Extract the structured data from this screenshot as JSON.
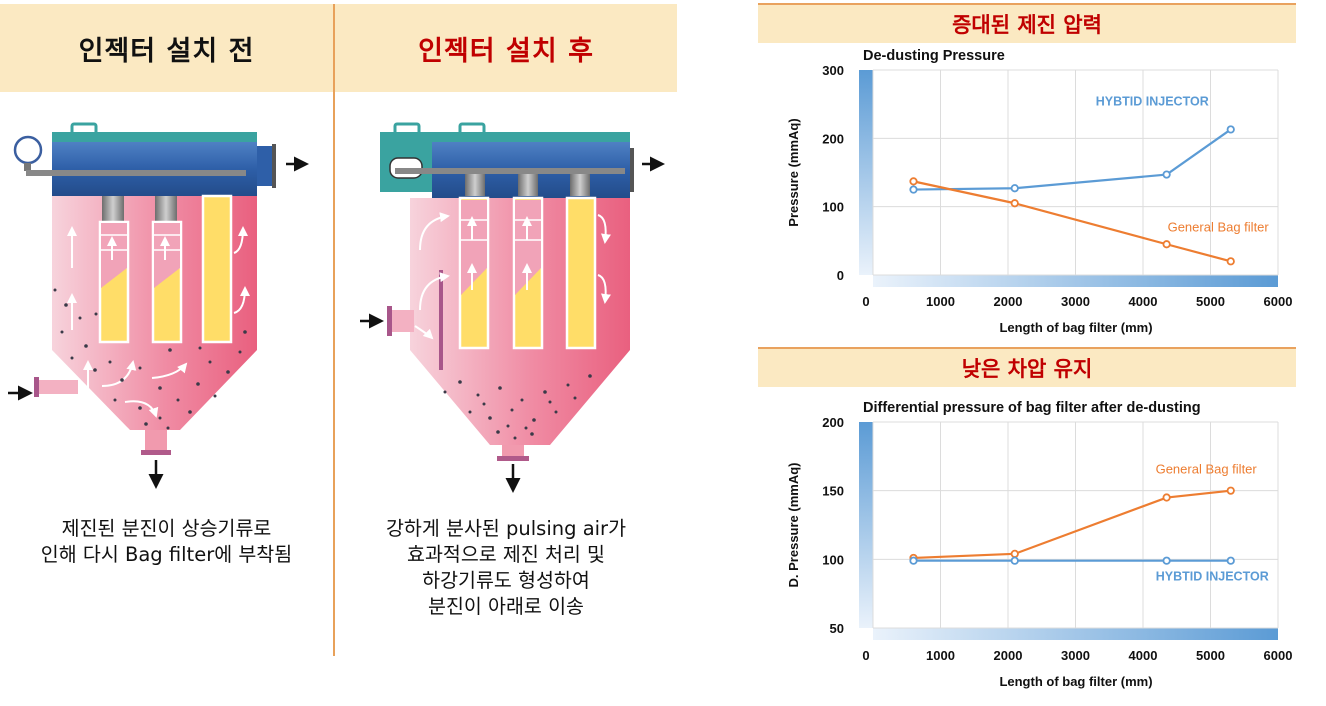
{
  "before": {
    "title": "인젝터 설치 전",
    "caption": [
      "제진된 분진이 상승기류로",
      "인해 다시 Bag filter에 부착됨"
    ]
  },
  "after": {
    "title": "인젝터 설치 후",
    "caption": [
      "강하게 분사된 pulsing air가",
      "효과적으로 제진 처리 및",
      "하강기류도 형성하여",
      "분진이 아래로 이송"
    ]
  },
  "colors": {
    "accent_red": "#c00000",
    "header_bg": "#fbe9c2",
    "series_injector": "#5b9bd5",
    "series_general": "#ed7d31"
  },
  "chart_data": [
    {
      "header": "증대된 제진 압력",
      "type": "line",
      "title": "De-dusting Pressure",
      "xlabel": "Length of bag filter (mm)",
      "ylabel": "Pressure (mmAq)",
      "xlim": [
        0,
        6000
      ],
      "ylim": [
        0,
        300
      ],
      "xticks": [
        "0",
        "1000",
        "2000",
        "3000",
        "4000",
        "5000",
        "6000"
      ],
      "yticks": [
        "0",
        "100",
        "200",
        "300"
      ],
      "series": [
        {
          "name": "HYBTID INJECTOR",
          "x": [
            600,
            2100,
            4350,
            5300
          ],
          "y": [
            125,
            127,
            147,
            213
          ]
        },
        {
          "name": "General Bag filter",
          "x": [
            600,
            2100,
            4350,
            5300
          ],
          "y": [
            137,
            105,
            45,
            20
          ]
        }
      ]
    },
    {
      "header": "낮은 차압 유지",
      "type": "line",
      "title": "Differential pressure of bag filter after de-dusting",
      "xlabel": "Length of bag filter (mm)",
      "ylabel": "D. Pressure (mmAq)",
      "xlim": [
        0,
        6000
      ],
      "ylim": [
        50,
        200
      ],
      "xticks": [
        "0",
        "1000",
        "2000",
        "3000",
        "4000",
        "5000",
        "6000"
      ],
      "yticks": [
        "50",
        "100",
        "150",
        "200"
      ],
      "series": [
        {
          "name": "General Bag filter",
          "x": [
            600,
            2100,
            4350,
            5300
          ],
          "y": [
            101,
            104,
            145,
            150
          ]
        },
        {
          "name": "HYBTID INJECTOR",
          "x": [
            600,
            2100,
            4350,
            5300
          ],
          "y": [
            99,
            99,
            99,
            99
          ]
        }
      ]
    }
  ]
}
